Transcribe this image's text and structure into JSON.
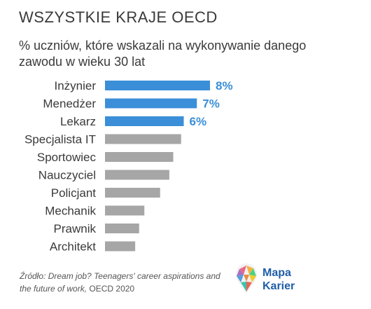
{
  "chart_data": {
    "type": "bar",
    "orientation": "horizontal",
    "title": "WSZYSTKIE KRAJE OECD",
    "subtitle": "% uczniów, które wskazali na wykonywanie danego zawodu w wieku 30 lat",
    "categories": [
      "Inżynier",
      "Menedżer",
      "Lekarz",
      "Specjalista IT",
      "Sportowiec",
      "Nauczyciel",
      "Policjant",
      "Mechanik",
      "Prawnik",
      "Architekt"
    ],
    "values": [
      8,
      7,
      6,
      5.8,
      5.2,
      4.9,
      4.2,
      3,
      2.6,
      2.3
    ],
    "data_labels": [
      "8%",
      "7%",
      "6%",
      "",
      "",
      "",
      "",
      "",
      "",
      ""
    ],
    "highlighted": [
      true,
      true,
      true,
      false,
      false,
      false,
      false,
      false,
      false,
      false
    ],
    "xlim": [
      0,
      8
    ],
    "grid": false,
    "colors": {
      "highlight": "#3b8fd8",
      "default": "#a6a6a6",
      "label_highlight": "#3b8fd8"
    }
  },
  "source": {
    "prefix": "Źródło:",
    "text": "Dream job? Teenagers' career aspirations and the future of work,",
    "suffix": "OECD 2020"
  },
  "logo": {
    "line1": "Mapa",
    "line2": "Karier",
    "color": "#1f5fa8"
  }
}
